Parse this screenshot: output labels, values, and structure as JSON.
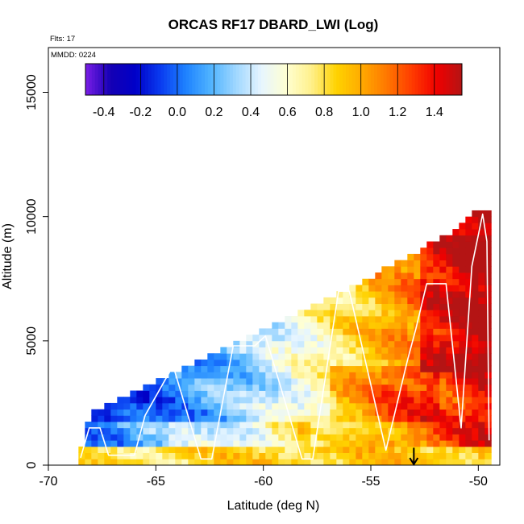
{
  "chart_data": {
    "type": "heatmap",
    "title": "ORCAS RF17 DBARD_LWI (Log)",
    "flights_note": "Flts: 17",
    "date_note": "MMDD: 0224",
    "xlabel": "Latitude (deg N)",
    "ylabel": "Altitude (m)",
    "xlim": [
      -70,
      -49
    ],
    "ylim": [
      0,
      16800
    ],
    "x_ticks": [
      -70,
      -65,
      -60,
      -55,
      -50
    ],
    "x_tick_labels": [
      "-70",
      "-65",
      "-60",
      "-55",
      "-50"
    ],
    "y_ticks": [
      0,
      5000,
      10000,
      15000
    ],
    "y_tick_labels": [
      "0",
      "5000",
      "10000",
      "15000"
    ],
    "colorbar": {
      "range": [
        -0.5,
        1.55
      ],
      "ticks": [
        -0.4,
        -0.2,
        0.0,
        0.2,
        0.4,
        0.6,
        0.8,
        1.0,
        1.2,
        1.4
      ],
      "tick_labels": [
        "-0.4",
        "-0.2",
        "0.0",
        "0.2",
        "0.4",
        "0.6",
        "0.8",
        "1.0",
        "1.2",
        "1.4"
      ],
      "colors": [
        "#7a1ee6",
        "#1400b4",
        "#0000c8",
        "#0a3cf0",
        "#1e82ff",
        "#50b4ff",
        "#a0d7ff",
        "#e6f5ff",
        "#ffffd2",
        "#fff08c",
        "#ffd200",
        "#ffaa00",
        "#ff7800",
        "#ff3c00",
        "#f00000",
        "#b41414"
      ]
    },
    "data_region": {
      "lat_start": -68.6,
      "lat_end": -49.4,
      "lat_step": 0.3,
      "alt_step": 250,
      "top_altitude_profile": [
        [
          -68.6,
          0
        ],
        [
          -68.0,
          2000
        ],
        [
          -65,
          3300
        ],
        [
          -62,
          4500
        ],
        [
          -59,
          5700
        ],
        [
          -56,
          7000
        ],
        [
          -53,
          8400
        ],
        [
          -51,
          9400
        ],
        [
          -50.2,
          10200
        ],
        [
          -49.4,
          10200
        ]
      ]
    },
    "flight_track": [
      [
        -68.5,
        300
      ],
      [
        -68.1,
        1500
      ],
      [
        -67.6,
        1500
      ],
      [
        -67.2,
        400
      ],
      [
        -66.0,
        400
      ],
      [
        -65.5,
        2000
      ],
      [
        -64.2,
        4000
      ],
      [
        -62.9,
        250
      ],
      [
        -62.4,
        250
      ],
      [
        -61.4,
        4800
      ],
      [
        -60.4,
        4800
      ],
      [
        -59.9,
        5200
      ],
      [
        -58.2,
        250
      ],
      [
        -57.7,
        250
      ],
      [
        -56.5,
        7000
      ],
      [
        -56.0,
        7000
      ],
      [
        -54.3,
        600
      ],
      [
        -53.3,
        4200
      ],
      [
        -52.9,
        5500
      ],
      [
        -52.4,
        7300
      ],
      [
        -51.5,
        7300
      ],
      [
        -50.8,
        1500
      ],
      [
        -50.3,
        8000
      ],
      [
        -49.8,
        10100
      ],
      [
        -49.6,
        9000
      ],
      [
        -49.5,
        1000
      ]
    ],
    "marker": {
      "type": "arrow-down",
      "lat": -53.0,
      "alt_top": 700,
      "alt_bottom": 0
    }
  }
}
